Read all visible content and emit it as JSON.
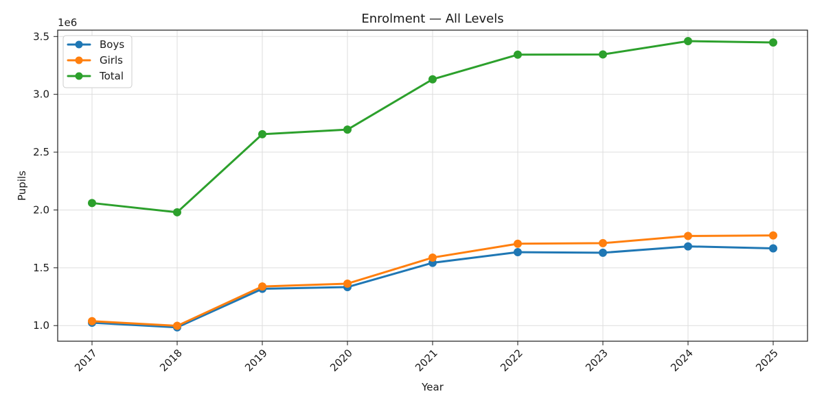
{
  "chart_data": {
    "type": "line",
    "title": "Enrolment — All Levels",
    "xlabel": "Year",
    "ylabel": "Pupils",
    "y_scale_label": "1e6",
    "categories": [
      "2017",
      "2018",
      "2019",
      "2020",
      "2021",
      "2022",
      "2023",
      "2024",
      "2025"
    ],
    "y_ticks": [
      1.0,
      1.5,
      2.0,
      2.5,
      3.0,
      3.5
    ],
    "y_tick_labels": [
      "1.0",
      "1.5",
      "2.0",
      "2.5",
      "3.0",
      "3.5"
    ],
    "ylim": [
      0.865,
      3.555
    ],
    "grid": true,
    "legend_position": "top-left",
    "series": [
      {
        "name": "Boys",
        "color": "#1f77b4",
        "values": [
          1.025,
          0.985,
          1.318,
          1.333,
          1.543,
          1.635,
          1.63,
          1.685,
          1.668
        ]
      },
      {
        "name": "Girls",
        "color": "#ff7f0e",
        "values": [
          1.038,
          0.998,
          1.338,
          1.363,
          1.588,
          1.708,
          1.713,
          1.775,
          1.78
        ]
      },
      {
        "name": "Total",
        "color": "#2ca02c",
        "values": [
          2.06,
          1.98,
          2.655,
          2.695,
          3.13,
          3.343,
          3.345,
          3.46,
          3.448
        ]
      }
    ]
  }
}
